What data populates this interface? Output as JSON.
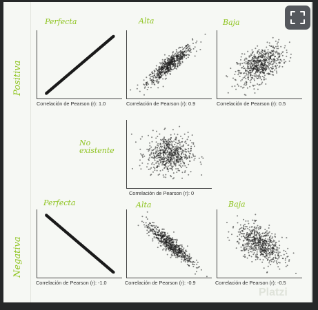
{
  "labels": {
    "positiva": "Positiva",
    "negativa": "Negativa",
    "perfecta_top": "Perfecta",
    "alta_top": "Alta",
    "baja_top": "Baja",
    "no_existente": "No existente",
    "perfecta_bottom": "Perfecta",
    "alta_bottom": "Alta",
    "baja_bottom": "Baja"
  },
  "watermark": "Platzi",
  "accent_color": "#8fc421",
  "expand_icon": "expand-icon",
  "chart_data": [
    {
      "type": "scatter",
      "r": 1.0,
      "xlabel": "Correlación de Pearson (r): 1.0"
    },
    {
      "type": "scatter",
      "r": 0.9,
      "xlabel": "Correlación de Pearson (r): 0.9"
    },
    {
      "type": "scatter",
      "r": 0.5,
      "xlabel": "Correlación de Pearson (r): 0.5"
    },
    {
      "type": "scatter",
      "r": 0,
      "xlabel": "Correlación de Pearson (r): 0"
    },
    {
      "type": "scatter",
      "r": -1.0,
      "xlabel": "Correlación de Pearson (r): -1.0"
    },
    {
      "type": "scatter",
      "r": -0.9,
      "xlabel": "Correlación de Pearson (r): -0.9"
    },
    {
      "type": "scatter",
      "r": -0.5,
      "xlabel": "Correlación de Pearson (r): -0.5"
    }
  ]
}
